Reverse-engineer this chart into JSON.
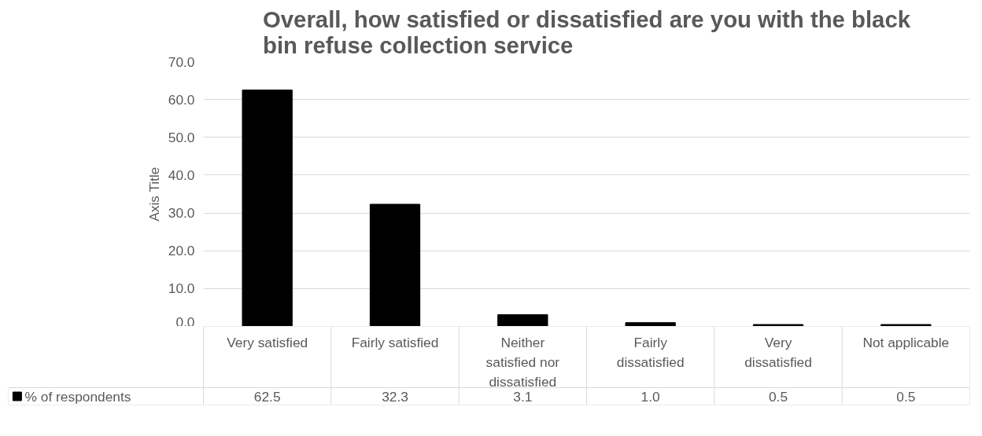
{
  "chart_data": {
    "type": "bar",
    "title": "Overall, how satisfied or dissatisfied are you with the black bin refuse collection service",
    "ylabel": "Axis Title",
    "categories": [
      "Very satisfied",
      "Fairly satisfied",
      "Neither satisfied nor dissatisfied",
      "Fairly dissatisfied",
      "Very dissatisfied",
      "Not applicable"
    ],
    "series": [
      {
        "name": "% of respondents",
        "color": "#000000",
        "values": [
          62.5,
          32.3,
          3.1,
          1.0,
          0.5,
          0.5
        ],
        "value_labels": [
          "62.5",
          "32.3",
          "3.1",
          "1.0",
          "0.5",
          "0.5"
        ]
      }
    ],
    "ylim": [
      0,
      70
    ],
    "yticks": [
      {
        "value": 0,
        "label": "0.0"
      },
      {
        "value": 10,
        "label": "10.0"
      },
      {
        "value": 20,
        "label": "20.0"
      },
      {
        "value": 30,
        "label": "30.0"
      },
      {
        "value": 40,
        "label": "40.0"
      },
      {
        "value": 50,
        "label": "50.0"
      },
      {
        "value": 60,
        "label": "60.0"
      },
      {
        "value": 70,
        "label": "70.0"
      }
    ],
    "grid": "y"
  }
}
